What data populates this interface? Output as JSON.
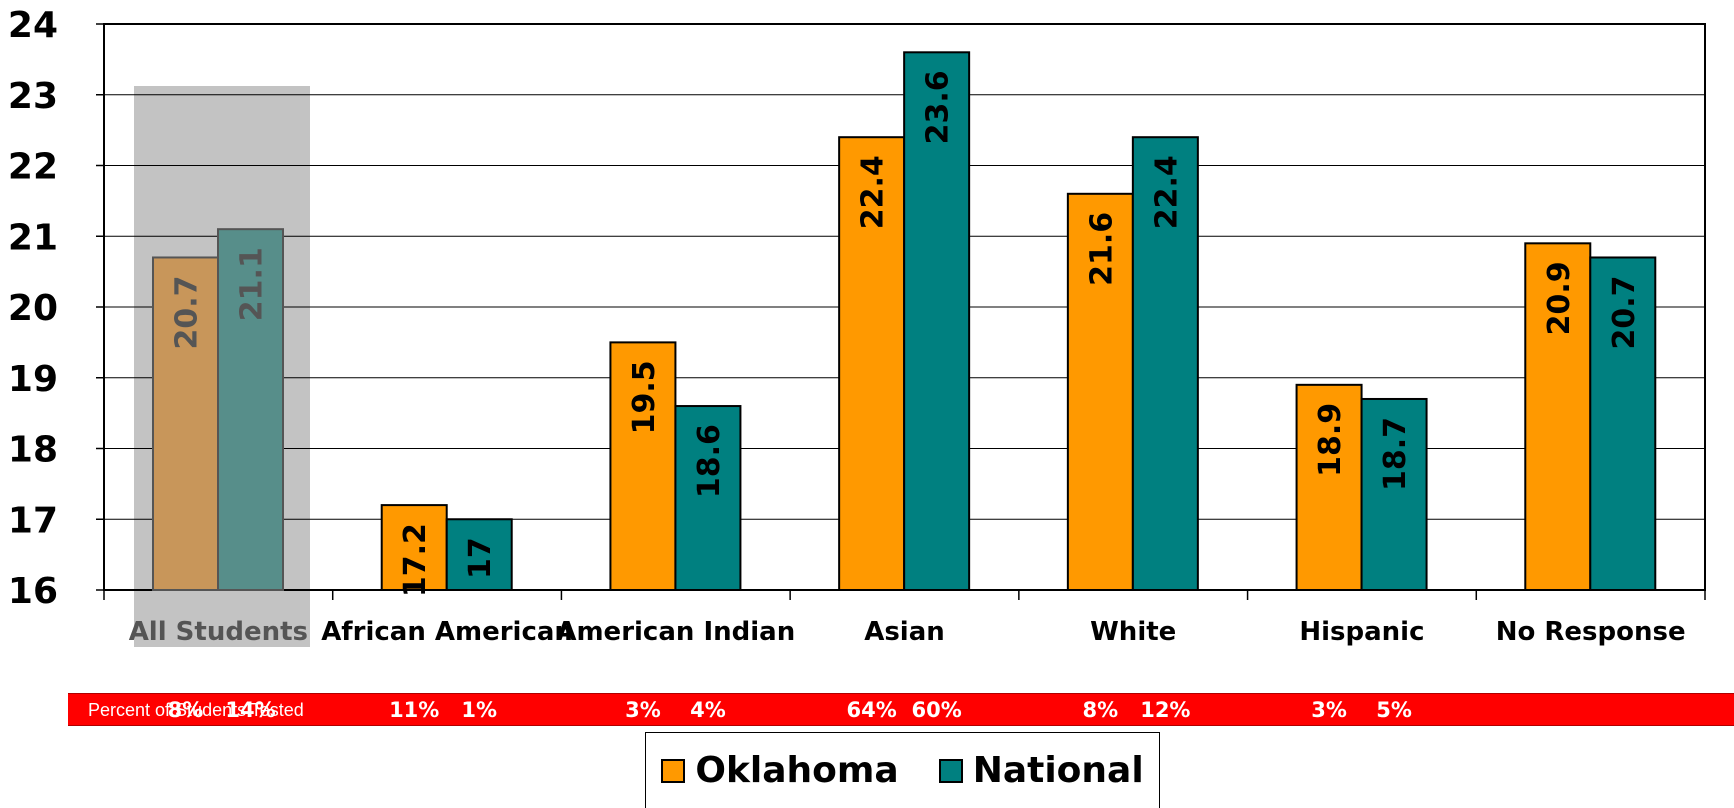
{
  "chart_data": {
    "type": "bar",
    "categories": [
      "All Students",
      "African American",
      "American Indian",
      "Asian",
      "White",
      "Hispanic",
      "No Response"
    ],
    "series": [
      {
        "name": "Oklahoma",
        "values": [
          20.7,
          17.2,
          19.5,
          22.4,
          21.6,
          18.9,
          20.9
        ],
        "labels": [
          "20.7",
          "17.2",
          "19.5",
          "22.4",
          "21.6",
          "18.9",
          "20.9"
        ]
      },
      {
        "name": "National",
        "values": [
          21.1,
          17.0,
          18.6,
          23.6,
          22.4,
          18.7,
          20.7
        ],
        "labels": [
          "21.1",
          "17",
          "18.6",
          "23.6",
          "22.4",
          "18.7",
          "20.7"
        ]
      }
    ],
    "ylim": [
      16,
      24
    ],
    "yticks": [
      "16",
      "17",
      "18",
      "19",
      "20",
      "21",
      "22",
      "23",
      "24"
    ],
    "highlighted_category": "All Students",
    "grid": true,
    "legend_position": "bottom",
    "colors": {
      "Oklahoma": "#ff9900",
      "National": "#008080",
      "Oklahoma_highlighted": "#c8965a",
      "National_highlighted": "#578e8a",
      "highlight_band": "#c3c3c3",
      "percent_strip": "#ff0000"
    },
    "percent_tested": {
      "label": "Percent of Students Tested",
      "values": [
        [
          "8%",
          "14%"
        ],
        [
          "11%",
          "1%"
        ],
        [
          "3%",
          "4%"
        ],
        [
          "64%",
          "60%"
        ],
        [
          "8%",
          "12%"
        ],
        [
          "3%",
          "5%"
        ],
        [
          "",
          ""
        ]
      ]
    }
  }
}
